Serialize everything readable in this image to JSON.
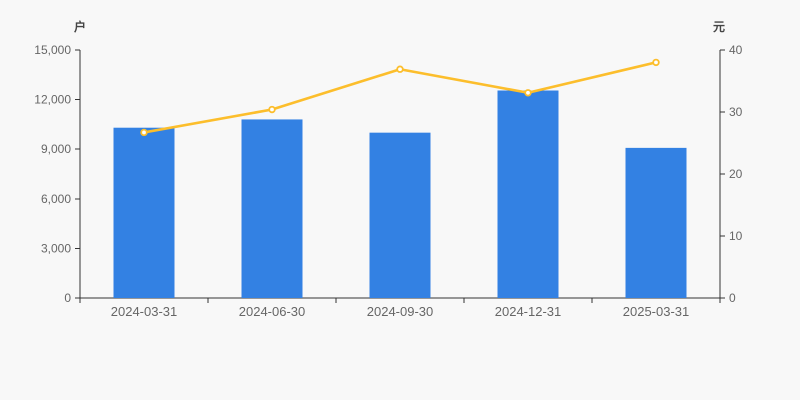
{
  "page": {
    "background": "#f8f8f8"
  },
  "chart_data": {
    "type": "bar",
    "combo": "bar+line-dual-axis",
    "title": "",
    "legend": null,
    "grid": false,
    "categories": [
      "2024-03-31",
      "2024-06-30",
      "2024-09-30",
      "2024-12-31",
      "2025-03-31"
    ],
    "series": [
      {
        "name": "户",
        "type": "bar",
        "y_axis": "left",
        "color": "#3381E3",
        "values": [
          10300,
          10800,
          10000,
          12550,
          9080
        ]
      },
      {
        "name": "元",
        "type": "line",
        "y_axis": "right",
        "color": "#FCBE2C",
        "marker": "hollow-circle",
        "values": [
          26.7,
          30.4,
          36.9,
          33.1,
          38
        ]
      }
    ],
    "left_axis": {
      "name": "户",
      "min": 0,
      "max": 15000,
      "tick_values": [
        0,
        3000,
        6000,
        9000,
        12000,
        15000
      ],
      "tick_labels": [
        "0",
        "3,000",
        "6,000",
        "9,000",
        "12,000",
        "15,000"
      ]
    },
    "right_axis": {
      "name": "元",
      "min": 0,
      "max": 40,
      "tick_values": [
        0,
        10,
        20,
        30,
        40
      ],
      "tick_labels": [
        "0",
        "10",
        "20",
        "30",
        "40"
      ]
    },
    "x_axis": {
      "labels": [
        "2024-03-31",
        "2024-06-30",
        "2024-09-30",
        "2024-12-31",
        "2025-03-31"
      ]
    },
    "style": {
      "axis_line_color": "#333333",
      "tick_label_color": "#666666",
      "axis_name_color": "#444444",
      "marker_fill": "#ffffff"
    }
  }
}
